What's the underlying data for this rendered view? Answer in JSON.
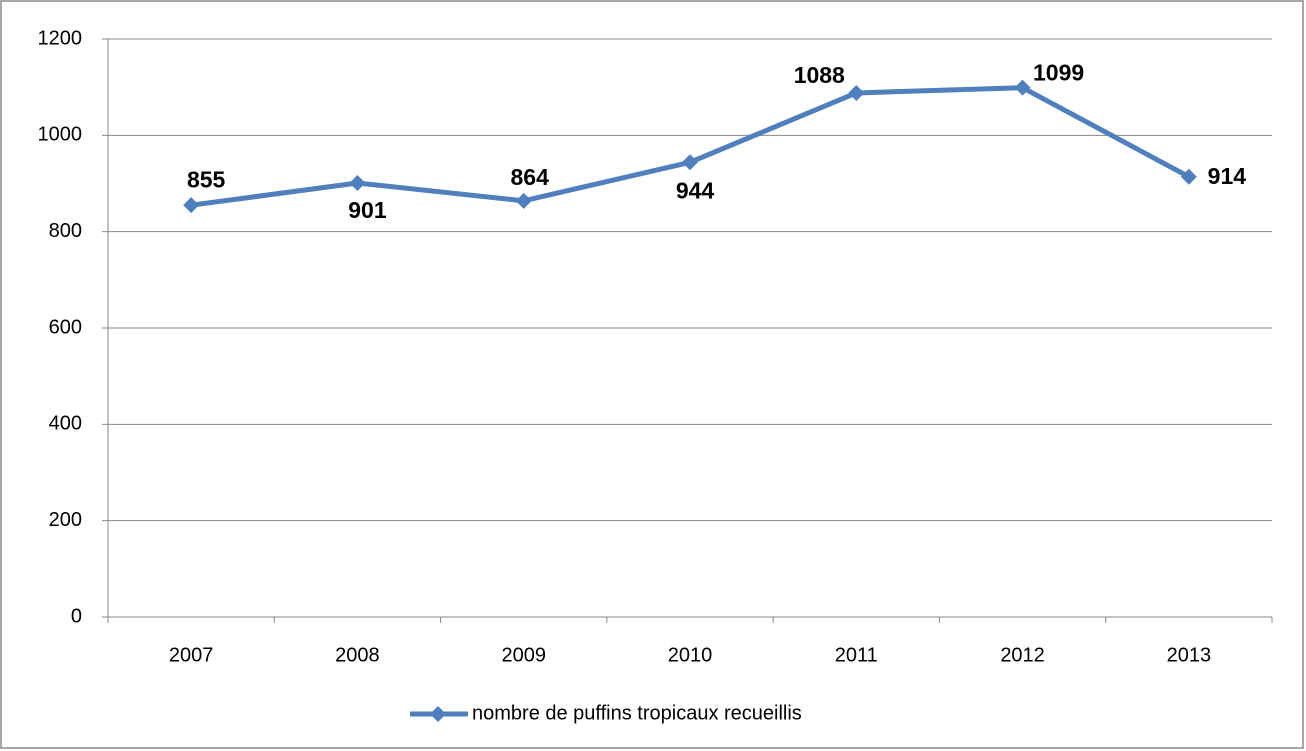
{
  "chart_data": {
    "type": "line",
    "categories": [
      "2007",
      "2008",
      "2009",
      "2010",
      "2011",
      "2012",
      "2013"
    ],
    "series": [
      {
        "name": "nombre de puffins tropicaux recueillis",
        "color": "#4f7fbd",
        "values": [
          855,
          901,
          864,
          944,
          1088,
          1099,
          914
        ]
      }
    ],
    "ylim": [
      0,
      1200
    ],
    "yticks": [
      0,
      200,
      400,
      600,
      800,
      1000,
      1200
    ],
    "grid": true,
    "legend": "bottom",
    "data_labels": true
  }
}
